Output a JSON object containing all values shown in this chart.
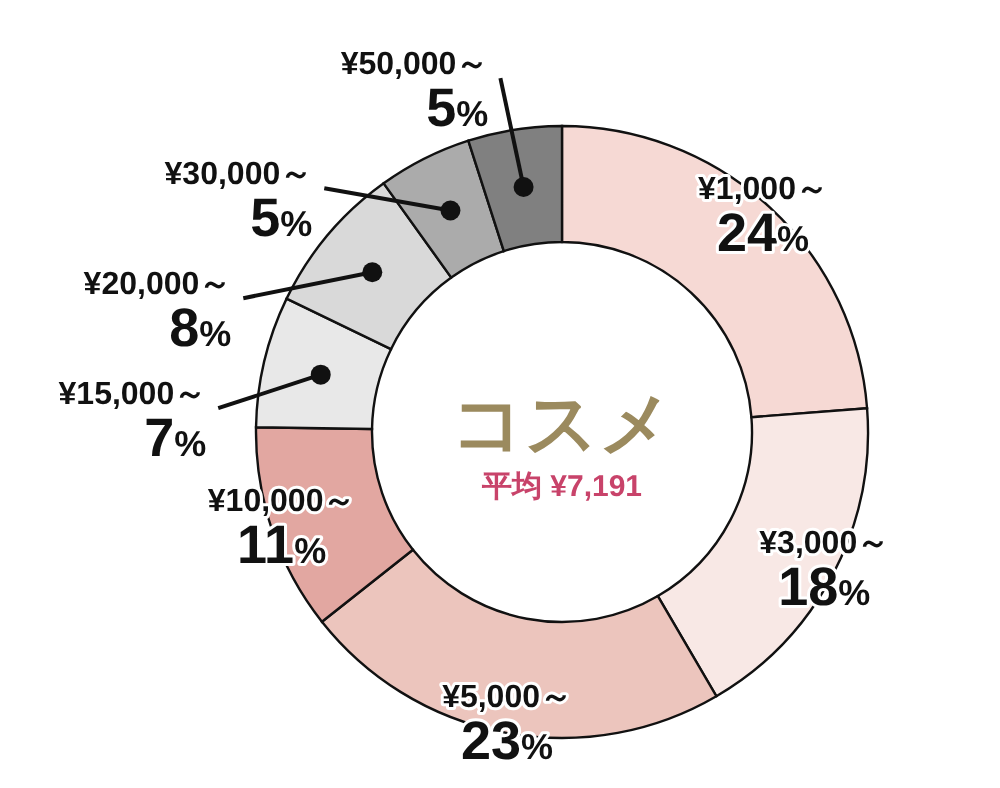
{
  "chart_data": {
    "type": "donut",
    "title": "コスメ",
    "subtitle": "平均 ¥7,191",
    "categories": [
      "¥1,000～",
      "¥3,000～",
      "¥5,000～",
      "¥10,000～",
      "¥15,000～",
      "¥20,000～",
      "¥30,000～",
      "¥50,000～"
    ],
    "values": [
      24,
      18,
      23,
      11,
      7,
      8,
      5,
      5
    ],
    "colors": [
      "#f6d9d4",
      "#f8e8e5",
      "#ecc5bd",
      "#e2a7a1",
      "#e8e8e8",
      "#d9d9d9",
      "#ababab",
      "#808080"
    ],
    "value_labels": [
      "24%",
      "18%",
      "23%",
      "11%",
      "7%",
      "8%",
      "5%",
      "5%"
    ]
  }
}
